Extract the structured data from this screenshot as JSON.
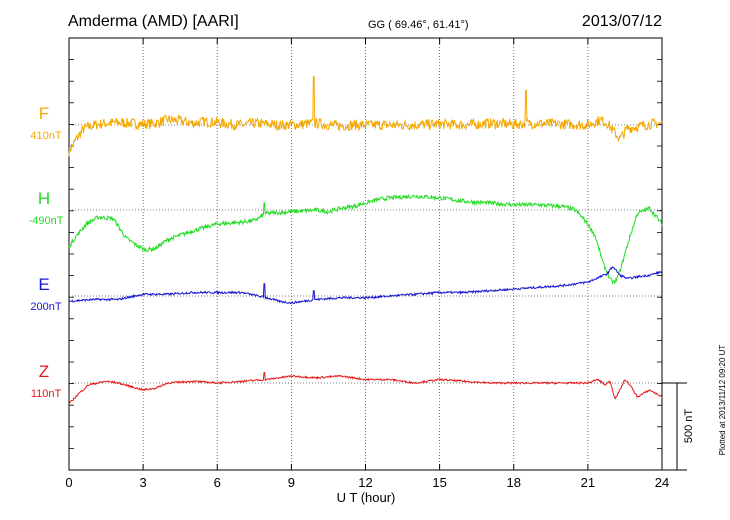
{
  "header": {
    "station": "Amderma (AMD)  [AARI]",
    "coords": "GG ( 69.46°,  61.41°)",
    "date": "2013/07/12"
  },
  "footer": {
    "plotted": "Plotted at 2013/11/12 09:20 UT"
  },
  "chart_data": {
    "type": "line",
    "xlabel": "U T (hour)",
    "xlim": [
      0,
      24
    ],
    "x_ticks": [
      "0",
      "3",
      "6",
      "9",
      "12",
      "15",
      "18",
      "21",
      "24"
    ],
    "scale_bar": {
      "label": "500 nT",
      "value_nT": 500
    },
    "grid": true,
    "series": [
      {
        "name": "F",
        "baseline": "410nT",
        "color": "#f5a800",
        "t": [
          0,
          0.3,
          0.6,
          1,
          1.5,
          2,
          2.5,
          3,
          3.5,
          4,
          4.5,
          5,
          5.5,
          6,
          6.5,
          7,
          7.5,
          8,
          8.5,
          9,
          9.5,
          10,
          10.5,
          11,
          11.5,
          12,
          13,
          14,
          15,
          16,
          17,
          18,
          19,
          20,
          21,
          21.5,
          21.8,
          22,
          22.3,
          22.6,
          23,
          23.5,
          24
        ],
        "dnT": [
          -150,
          -80,
          -20,
          0,
          10,
          15,
          10,
          5,
          10,
          30,
          25,
          10,
          20,
          15,
          5,
          0,
          10,
          5,
          0,
          0,
          5,
          10,
          0,
          -5,
          0,
          0,
          0,
          0,
          5,
          0,
          10,
          5,
          10,
          5,
          0,
          30,
          10,
          -30,
          -80,
          -20,
          -10,
          5,
          10
        ],
        "noise_nT": 30
      },
      {
        "name": "H",
        "baseline": "-490nT",
        "color": "#22dd22",
        "t": [
          0,
          0.3,
          0.7,
          1.2,
          1.8,
          2.3,
          2.7,
          3.1,
          3.5,
          4,
          5,
          5.5,
          6,
          7,
          7.5,
          8,
          9,
          10,
          10.5,
          11,
          11.5,
          12,
          12.5,
          13,
          14,
          15,
          16,
          17,
          18,
          19,
          20,
          20.5,
          21,
          21.3,
          21.6,
          21.9,
          22.1,
          22.3,
          22.6,
          23,
          23.5,
          24
        ],
        "dnT": [
          -210,
          -150,
          -80,
          -40,
          -50,
          -160,
          -200,
          -230,
          -220,
          -170,
          -120,
          -100,
          -80,
          -70,
          -60,
          -20,
          -10,
          0,
          -10,
          10,
          20,
          40,
          60,
          70,
          80,
          70,
          50,
          40,
          30,
          30,
          20,
          0,
          -80,
          -150,
          -300,
          -400,
          -420,
          -350,
          -200,
          -20,
          10,
          -80
        ],
        "noise_nT": 12
      },
      {
        "name": "E",
        "baseline": "200nT",
        "color": "#1616d0",
        "t": [
          0,
          1,
          2,
          3,
          4,
          5,
          6,
          7,
          8,
          8.5,
          9,
          10,
          11,
          12,
          13,
          14,
          15,
          16,
          17,
          18,
          19,
          20,
          20.5,
          21,
          21.5,
          21.8,
          22,
          22.3,
          22.6,
          23,
          23.5,
          24
        ],
        "dnT": [
          -30,
          -20,
          -20,
          10,
          10,
          20,
          20,
          20,
          -10,
          -30,
          -40,
          -20,
          -10,
          -10,
          0,
          10,
          20,
          20,
          30,
          40,
          50,
          60,
          70,
          80,
          110,
          130,
          170,
          120,
          100,
          110,
          120,
          140
        ],
        "noise_nT": 6
      },
      {
        "name": "Z",
        "baseline": "110nT",
        "color": "#e81818",
        "t": [
          0,
          0.4,
          0.8,
          1.5,
          2,
          3,
          3.5,
          4,
          5,
          6,
          7,
          8,
          9,
          10,
          11,
          12,
          13,
          14,
          15,
          16,
          17,
          18,
          19,
          20,
          21,
          21.4,
          21.7,
          21.9,
          22.1,
          22.3,
          22.5,
          22.7,
          23,
          23.5,
          24
        ],
        "dnT": [
          -120,
          -60,
          -10,
          10,
          0,
          -40,
          -30,
          0,
          10,
          0,
          10,
          20,
          40,
          30,
          40,
          20,
          20,
          0,
          20,
          10,
          0,
          0,
          0,
          0,
          0,
          20,
          -10,
          10,
          -90,
          -40,
          20,
          -10,
          -80,
          -40,
          -80
        ],
        "noise_nT": 5
      }
    ],
    "spikes": [
      {
        "series": "F",
        "t": 9.9,
        "dnT": 280
      },
      {
        "series": "F",
        "t": 18.5,
        "dnT": 200
      },
      {
        "series": "H",
        "t": 7.9,
        "dnT": 40
      },
      {
        "series": "E",
        "t": 7.9,
        "dnT": 70
      },
      {
        "series": "E",
        "t": 9.9,
        "dnT": 30
      },
      {
        "series": "Z",
        "t": 7.9,
        "dnT": 60
      },
      {
        "series": "Z",
        "t": 9.9,
        "dnT": 30
      }
    ]
  }
}
